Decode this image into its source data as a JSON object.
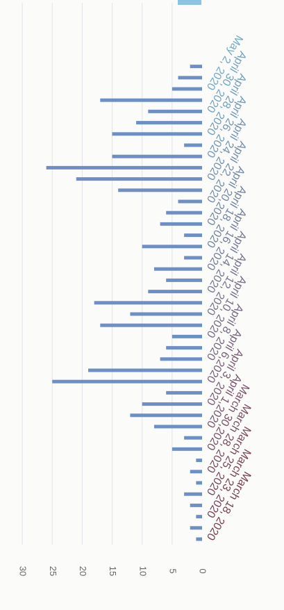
{
  "chart_data": {
    "type": "bar",
    "orientation": "horizontal",
    "yticks": [
      0,
      5,
      10,
      15,
      20,
      25,
      30
    ],
    "ylim": [
      0,
      30
    ],
    "grid": true,
    "values": [
      1,
      2,
      1,
      2,
      3,
      1,
      2,
      1,
      5,
      3,
      8,
      12,
      10,
      6,
      25,
      19,
      7,
      6,
      5,
      17,
      12,
      18,
      9,
      6,
      8,
      3,
      10,
      3,
      7,
      6,
      4,
      14,
      21,
      26,
      15,
      3,
      15,
      11,
      9,
      17,
      5,
      4,
      2
    ],
    "date_labels": [
      {
        "label": "March 18, 2020",
        "index": 0
      },
      {
        "label": "March 23, 2020",
        "index": 2
      },
      {
        "label": "March 25, 2020",
        "index": 4
      },
      {
        "label": "March 28, 2020",
        "index": 6
      },
      {
        "label": "March 30,2020",
        "index": 8
      },
      {
        "label": "April 1,2020",
        "index": 10
      },
      {
        "label": "April 3, 2020",
        "index": 12
      },
      {
        "label": "April 6,2020",
        "index": 14
      },
      {
        "label": "April 8, 2020",
        "index": 16
      },
      {
        "label": "April 10, 2020",
        "index": 18
      },
      {
        "label": "April 12, 2020",
        "index": 20
      },
      {
        "label": "April 14, 2020",
        "index": 22
      },
      {
        "label": "April 16, 2020",
        "index": 24
      },
      {
        "label": "April 18, 2020",
        "index": 26
      },
      {
        "label": "April 20,2020",
        "index": 28
      },
      {
        "label": "April 22, 2020",
        "index": 30
      },
      {
        "label": "April 24, 2020",
        "index": 32
      },
      {
        "label": "April 26, 2020",
        "index": 34
      },
      {
        "label": "April 28, 2020",
        "index": 36
      },
      {
        "label": "April 30, 2020",
        "index": 38
      },
      {
        "label": "May 2, 2020",
        "index": 40
      }
    ],
    "colors": {
      "bar": "#6e8fc6",
      "label_start": "#7a3c50",
      "label_end": "#6fa9c9",
      "top_bar": "#8cc3e3"
    }
  }
}
